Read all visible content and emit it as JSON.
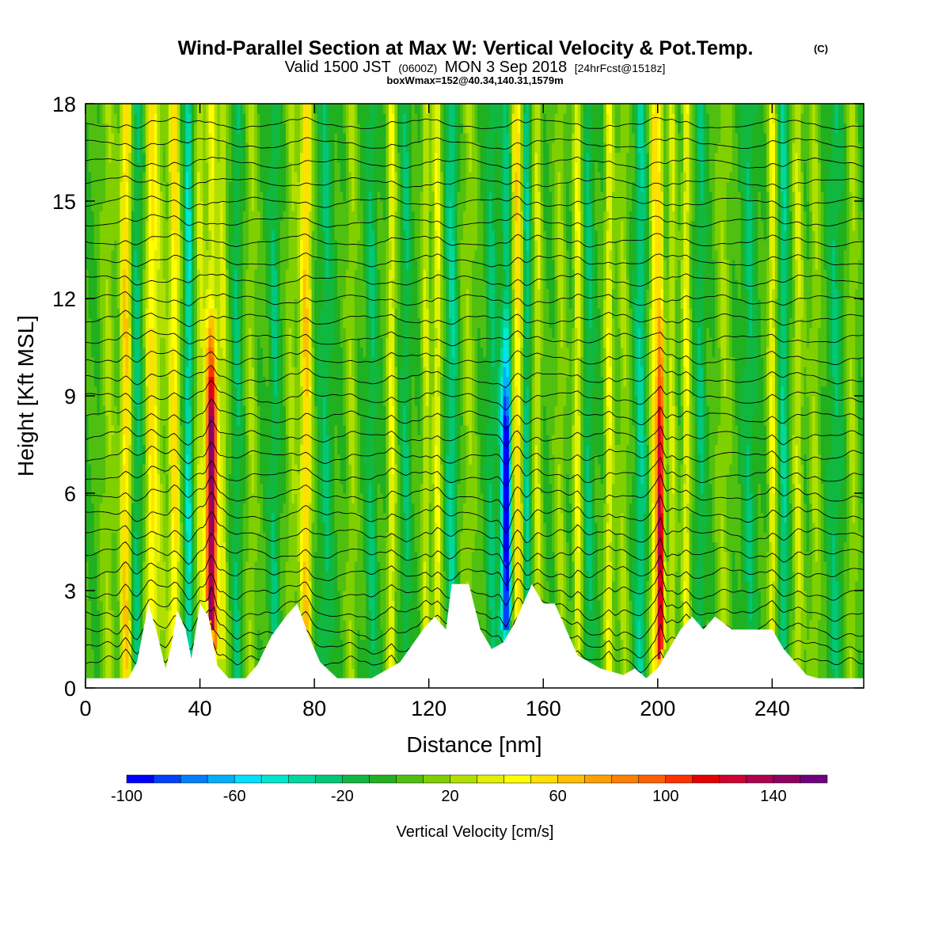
{
  "chart_data": {
    "type": "heatmap",
    "title": "Wind-Parallel Section at Max W: Vertical Velocity & Pot.Temp.",
    "title_mark": "(C)",
    "subtitle": {
      "part1": "Valid 1500 JST",
      "part2": "(0600Z)",
      "part3": "MON 3 Sep 2018",
      "part4": "[24hrFcst@1518z]"
    },
    "subtitle2": "boxWmax=152@40.34,140.31,1579m",
    "xlabel": "Distance [nm]",
    "ylabel": "Height [Kft MSL]",
    "xlim": [
      0,
      272
    ],
    "ylim": [
      0,
      18
    ],
    "xticks": [
      "0",
      "40",
      "80",
      "120",
      "160",
      "200",
      "240"
    ],
    "xtick_values": [
      0,
      40,
      80,
      120,
      160,
      200,
      240
    ],
    "yticks": [
      "0",
      "3",
      "6",
      "9",
      "12",
      "15",
      "18"
    ],
    "ytick_values": [
      0,
      3,
      6,
      9,
      12,
      15,
      18
    ],
    "colorbar": {
      "label": "Vertical Velocity [cm/s]",
      "min": -100,
      "max": 160,
      "step": 10,
      "tick_labels": [
        "-100",
        "-60",
        "-20",
        "20",
        "60",
        "100",
        "140"
      ],
      "tick_values": [
        -100,
        -60,
        -20,
        20,
        60,
        100,
        140
      ],
      "colors": [
        "#0000ff",
        "#0040ff",
        "#0080ff",
        "#00b0ff",
        "#00e0ff",
        "#00e8d0",
        "#00d8a0",
        "#00c878",
        "#10b840",
        "#20b020",
        "#50c010",
        "#80d000",
        "#b0e000",
        "#e0f000",
        "#ffff00",
        "#ffe000",
        "#ffc000",
        "#ffa000",
        "#ff8000",
        "#ff6000",
        "#ff3000",
        "#e80000",
        "#d00030",
        "#b00050",
        "#900060",
        "#700080"
      ]
    },
    "background_w": 0,
    "terrain_kft": [
      [
        0,
        0.3
      ],
      [
        15,
        0.3
      ],
      [
        18,
        0.8
      ],
      [
        22,
        2.6
      ],
      [
        25,
        1.7
      ],
      [
        28,
        0.6
      ],
      [
        30,
        1.3
      ],
      [
        32,
        2.4
      ],
      [
        35,
        1.8
      ],
      [
        37,
        0.9
      ],
      [
        40,
        2.6
      ],
      [
        43,
        2.2
      ],
      [
        46,
        0.7
      ],
      [
        50,
        0.3
      ],
      [
        56,
        0.3
      ],
      [
        60,
        0.7
      ],
      [
        65,
        1.6
      ],
      [
        70,
        2.2
      ],
      [
        74,
        2.6
      ],
      [
        78,
        1.6
      ],
      [
        82,
        0.8
      ],
      [
        88,
        0.3
      ],
      [
        100,
        0.3
      ],
      [
        110,
        0.8
      ],
      [
        118,
        1.8
      ],
      [
        122,
        2.2
      ],
      [
        126,
        1.8
      ],
      [
        128,
        3.2
      ],
      [
        134,
        3.2
      ],
      [
        138,
        1.8
      ],
      [
        142,
        1.2
      ],
      [
        146,
        1.4
      ],
      [
        150,
        2.0
      ],
      [
        156,
        3.2
      ],
      [
        160,
        2.6
      ],
      [
        164,
        2.6
      ],
      [
        168,
        1.8
      ],
      [
        172,
        1.0
      ],
      [
        180,
        0.6
      ],
      [
        188,
        0.4
      ],
      [
        192,
        0.6
      ],
      [
        196,
        0.3
      ],
      [
        200,
        0.6
      ],
      [
        204,
        1.2
      ],
      [
        208,
        1.8
      ],
      [
        212,
        2.2
      ],
      [
        216,
        1.8
      ],
      [
        220,
        2.2
      ],
      [
        226,
        1.8
      ],
      [
        232,
        1.8
      ],
      [
        240,
        1.8
      ],
      [
        244,
        1.2
      ],
      [
        248,
        0.8
      ],
      [
        252,
        0.4
      ],
      [
        256,
        0.3
      ],
      [
        272,
        0.3
      ]
    ],
    "w_columns": [
      {
        "x": 8,
        "w": 20,
        "width": 2.5
      },
      {
        "x": 14,
        "w": 60,
        "width": 1.8
      },
      {
        "x": 18,
        "w": -25,
        "width": 1.5
      },
      {
        "x": 23,
        "w": 50,
        "width": 1.8
      },
      {
        "x": 26,
        "w": 20,
        "width": 2.5
      },
      {
        "x": 31,
        "w": 55,
        "width": 1.8
      },
      {
        "x": 36,
        "w": -40,
        "width": 1.5
      },
      {
        "x": 40,
        "w": 30,
        "width": 1.5
      },
      {
        "x": 44,
        "w": 152,
        "width": 2.0
      },
      {
        "x": 48,
        "w": 30,
        "width": 1.5
      },
      {
        "x": 53,
        "w": -20,
        "width": 1.5
      },
      {
        "x": 58,
        "w": 20,
        "width": 2.0
      },
      {
        "x": 66,
        "w": -20,
        "width": 2.0
      },
      {
        "x": 72,
        "w": 20,
        "width": 2.0
      },
      {
        "x": 77,
        "w": 60,
        "width": 2.0
      },
      {
        "x": 84,
        "w": -20,
        "width": 2.5
      },
      {
        "x": 93,
        "w": 20,
        "width": 2.0
      },
      {
        "x": 100,
        "w": -20,
        "width": 2.0
      },
      {
        "x": 107,
        "w": 40,
        "width": 1.5
      },
      {
        "x": 112,
        "w": -20,
        "width": 1.5
      },
      {
        "x": 119,
        "w": 30,
        "width": 1.5
      },
      {
        "x": 123,
        "w": 40,
        "width": 1.5
      },
      {
        "x": 128,
        "w": -30,
        "width": 2.0
      },
      {
        "x": 134,
        "w": 20,
        "width": 2.5
      },
      {
        "x": 142,
        "w": -20,
        "width": 2.0
      },
      {
        "x": 147,
        "w": -100,
        "width": 1.8
      },
      {
        "x": 151,
        "w": 60,
        "width": 1.8
      },
      {
        "x": 154,
        "w": -30,
        "width": 1.5
      },
      {
        "x": 158,
        "w": 30,
        "width": 1.5
      },
      {
        "x": 166,
        "w": 20,
        "width": 2.0
      },
      {
        "x": 172,
        "w": 40,
        "width": 1.5
      },
      {
        "x": 176,
        "w": -20,
        "width": 2.0
      },
      {
        "x": 183,
        "w": 40,
        "width": 1.5
      },
      {
        "x": 188,
        "w": 20,
        "width": 2.0
      },
      {
        "x": 194,
        "w": -30,
        "width": 2.0
      },
      {
        "x": 199,
        "w": 50,
        "width": 1.8
      },
      {
        "x": 201,
        "w": 120,
        "width": 1.2
      },
      {
        "x": 205,
        "w": 30,
        "width": 1.5
      },
      {
        "x": 210,
        "w": 40,
        "width": 1.5
      },
      {
        "x": 215,
        "w": -20,
        "width": 2.0
      },
      {
        "x": 223,
        "w": 20,
        "width": 2.5
      },
      {
        "x": 232,
        "w": -20,
        "width": 2.5
      },
      {
        "x": 240,
        "w": 40,
        "width": 1.5
      },
      {
        "x": 244,
        "w": -30,
        "width": 1.5
      },
      {
        "x": 249,
        "w": 30,
        "width": 1.8
      },
      {
        "x": 255,
        "w": 20,
        "width": 2.0
      },
      {
        "x": 262,
        "w": -20,
        "width": 2.5
      },
      {
        "x": 268,
        "w": 20,
        "width": 2.0
      }
    ],
    "theta_levels_kft": [
      0.6,
      1.2,
      1.8,
      2.4,
      3.0,
      3.6,
      4.2,
      4.8,
      5.4,
      6.0,
      6.6,
      7.2,
      7.8,
      8.4,
      9.0,
      9.6,
      10.2,
      10.8,
      11.4,
      12.0,
      12.6,
      13.2,
      13.8,
      14.4,
      15.0,
      15.6,
      16.2,
      16.8,
      17.4
    ]
  }
}
